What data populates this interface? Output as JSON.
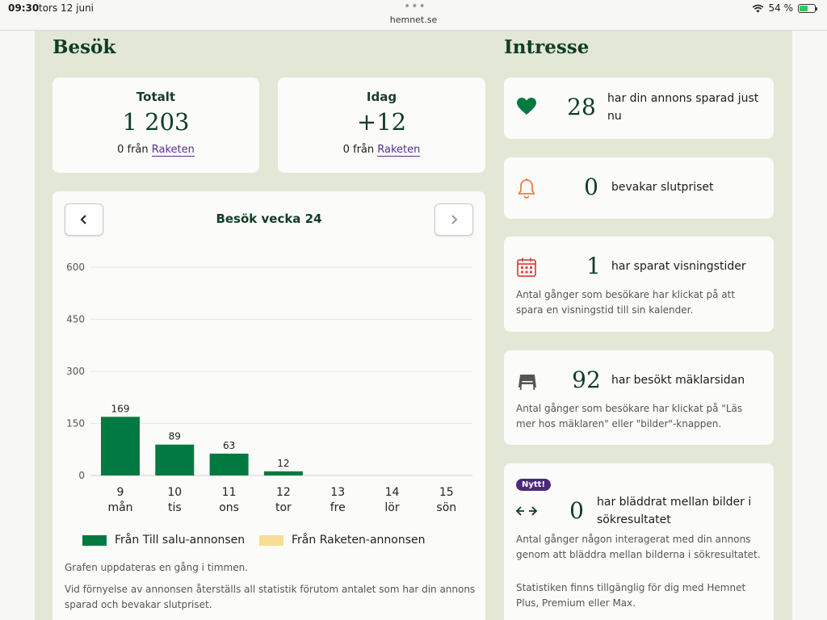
{
  "statusbar": {
    "time": "09:30",
    "date": "tors 12 juni",
    "url": "hemnet.se",
    "battery": "54 %",
    "battery_level": 0.54
  },
  "visits": {
    "title": "Besök",
    "total": {
      "label": "Totalt",
      "value": "1 203",
      "from_prefix": "0 från",
      "link": "Raketen"
    },
    "today": {
      "label": "Idag",
      "value": "+12",
      "from_prefix": "0 från",
      "link": "Raketen"
    },
    "chart": {
      "title": "Besök vecka 24",
      "prev_icon": "chevron-left-icon",
      "next_icon": "chevron-right-icon",
      "legend": [
        "Från Till salu-annonsen",
        "Från Raketen-annonsen"
      ],
      "note1": "Grafen uppdateras en gång i timmen.",
      "note2_line1": "Vid förnyelse av annonsen återställs all statistik förutom antalet som har din annons",
      "note2_line2": "sparad och bevakar slutpriset."
    }
  },
  "chart_data": {
    "type": "bar",
    "categories": [
      "9 mån",
      "10 tis",
      "11 ons",
      "12 tor",
      "13 fre",
      "14 lör",
      "15 sön"
    ],
    "days": [
      "9",
      "10",
      "11",
      "12",
      "13",
      "14",
      "15"
    ],
    "weekdays": [
      "mån",
      "tis",
      "ons",
      "tor",
      "fre",
      "lör",
      "sön"
    ],
    "series": [
      {
        "name": "Från Till salu-annonsen",
        "color": "#017a41",
        "values": [
          169,
          89,
          63,
          12,
          0,
          0,
          0
        ]
      },
      {
        "name": "Från Raketen-annonsen",
        "color": "#f8de94",
        "values": [
          0,
          0,
          0,
          0,
          0,
          0,
          0
        ]
      }
    ],
    "data_labels": [
      "169",
      "89",
      "63",
      "12"
    ],
    "yticks": [
      0,
      150,
      300,
      450,
      600
    ],
    "ylim": [
      0,
      600
    ],
    "grid": true,
    "legend": "bottom"
  },
  "interest": {
    "title": "Intresse",
    "cards": [
      {
        "icon": "heart-icon",
        "value": "28",
        "line1": "har din annons sparad just",
        "line2": "nu"
      },
      {
        "icon": "bell-icon",
        "value": "0",
        "line1": "bevakar slutpriset"
      },
      {
        "icon": "calendar-icon",
        "value": "1",
        "line1": "har sparat visningstider",
        "desc1": "Antal gånger som besökare har klickat på att",
        "desc2": "spara en visningstid till sin kalender."
      },
      {
        "icon": "storefront-icon",
        "value": "92",
        "line1": "har besökt mäklarsidan",
        "desc1": "Antal gånger som besökare har klickat på \"Läs",
        "desc2": "mer hos mäklaren\" eller \"bilder\"-knappen."
      },
      {
        "icon": "arrows-left-right-icon",
        "badge": "Nytt!",
        "value": "0",
        "line1": "har bläddrat mellan bilder i",
        "line2": "sökresultatet",
        "desc1": "Antal gånger någon interagerat med din annons",
        "desc2": "genom att bläddra mellan bilderna i sökresultatet.",
        "desc3": "Statistiken finns tillgänglig för dig med Hemnet",
        "desc4": "Plus, Premium eller Max."
      }
    ]
  },
  "colors": {
    "panel": "#e3e7d6",
    "brand_green": "#0f3d25",
    "bar_green": "#017a41",
    "raketen_yellow": "#f8de94",
    "link_purple": "#5a2e8c"
  }
}
